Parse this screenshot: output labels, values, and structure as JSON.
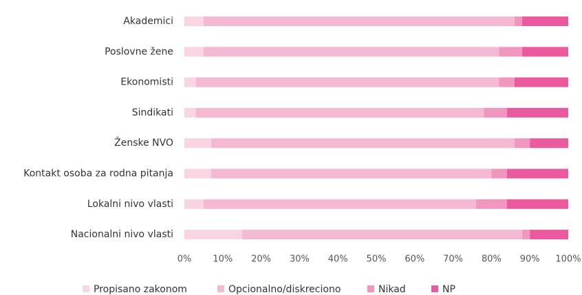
{
  "chart_data": {
    "type": "stacked_bar_horizontal",
    "categories": [
      "Akademici",
      "Poslovne žene",
      "Ekonomisti",
      "Sindikati",
      "Ženske NVO",
      "Kontakt osoba za rodna pitanja",
      "Lokalni nivo vlasti",
      "Nacionalni nivo vlasti"
    ],
    "series": [
      {
        "name": "Propisano zakonom",
        "color": "#f9d5e3",
        "values": [
          5,
          5,
          3,
          3,
          7,
          7,
          5,
          15
        ]
      },
      {
        "name": "Opcionalno/diskreciono",
        "color": "#f5b8d2",
        "values": [
          81,
          77,
          79,
          75,
          79,
          73,
          71,
          73
        ]
      },
      {
        "name": "Nikad",
        "color": "#f096bf",
        "values": [
          2,
          6,
          4,
          6,
          4,
          4,
          8,
          2
        ]
      },
      {
        "name": "NP",
        "color": "#eb5a9e",
        "values": [
          12,
          12,
          14,
          16,
          10,
          16,
          16,
          10
        ]
      }
    ],
    "xlim": [
      0,
      100
    ],
    "xticks": [
      {
        "value": 0,
        "label": "0%"
      },
      {
        "value": 10,
        "label": "10%"
      },
      {
        "value": 20,
        "label": "20%"
      },
      {
        "value": 30,
        "label": "30%"
      },
      {
        "value": 40,
        "label": "40%"
      },
      {
        "value": 50,
        "label": "50%"
      },
      {
        "value": 60,
        "label": "60%"
      },
      {
        "value": 70,
        "label": "70%"
      },
      {
        "value": 80,
        "label": "80%"
      },
      {
        "value": 90,
        "label": "90%"
      },
      {
        "value": 100,
        "label": "100%"
      }
    ],
    "legend": "bottom"
  }
}
